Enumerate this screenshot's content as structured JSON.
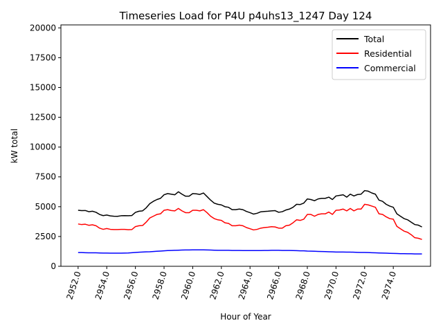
{
  "chart_data": {
    "type": "line",
    "title": "Timeseries Load for P4U p4uhs13_1247  Day 124",
    "xlabel": "Hour of Year",
    "ylabel": "kW total",
    "xlim": [
      2950.8,
      2976.6
    ],
    "ylim": [
      0,
      20250
    ],
    "xticks": [
      2952.0,
      2954.0,
      2956.0,
      2958.0,
      2960.0,
      2962.0,
      2964.0,
      2966.0,
      2968.0,
      2970.0,
      2972.0,
      2974.0
    ],
    "xtick_labels": [
      "2952.0",
      "2954.0",
      "2956.0",
      "2958.0",
      "2960.0",
      "2962.0",
      "2964.0",
      "2966.0",
      "2968.0",
      "2970.0",
      "2972.0",
      "2974.0"
    ],
    "yticks": [
      0,
      2500,
      5000,
      7500,
      10000,
      12500,
      15000,
      17500,
      20000
    ],
    "ytick_labels": [
      "0",
      "2500",
      "5000",
      "7500",
      "10000",
      "12500",
      "15000",
      "17500",
      "20000"
    ],
    "legend_position": "top-right",
    "x_start": 2952.0,
    "x_step": 0.25,
    "series": [
      {
        "name": "Total",
        "color": "#000000",
        "values": [
          4700,
          4670,
          4680,
          4580,
          4620,
          4530,
          4350,
          4250,
          4300,
          4230,
          4200,
          4190,
          4240,
          4250,
          4240,
          4260,
          4520,
          4620,
          4650,
          4900,
          5250,
          5450,
          5600,
          5700,
          6000,
          6100,
          6050,
          6000,
          6250,
          6050,
          5880,
          5880,
          6100,
          6080,
          6030,
          6150,
          5850,
          5550,
          5300,
          5200,
          5150,
          5000,
          4950,
          4750,
          4750,
          4800,
          4750,
          4600,
          4500,
          4380,
          4450,
          4570,
          4600,
          4620,
          4650,
          4670,
          4530,
          4580,
          4720,
          4800,
          4950,
          5200,
          5180,
          5300,
          5650,
          5600,
          5500,
          5650,
          5700,
          5700,
          5800,
          5600,
          5900,
          5950,
          6000,
          5800,
          6050,
          5900,
          6020,
          6050,
          6350,
          6300,
          6150,
          6050,
          5550,
          5450,
          5200,
          5050,
          4950,
          4400,
          4200,
          4000,
          3900,
          3700,
          3500,
          3450,
          3300
        ]
      },
      {
        "name": "Residential",
        "color": "#ff0000",
        "values": [
          3550,
          3500,
          3530,
          3440,
          3480,
          3400,
          3200,
          3100,
          3170,
          3100,
          3080,
          3080,
          3100,
          3100,
          3070,
          3080,
          3330,
          3400,
          3420,
          3700,
          4050,
          4200,
          4350,
          4400,
          4700,
          4750,
          4680,
          4650,
          4850,
          4650,
          4500,
          4500,
          4700,
          4700,
          4650,
          4750,
          4500,
          4200,
          4000,
          3900,
          3850,
          3650,
          3600,
          3400,
          3400,
          3450,
          3400,
          3250,
          3150,
          3050,
          3100,
          3200,
          3250,
          3280,
          3320,
          3300,
          3200,
          3200,
          3400,
          3450,
          3650,
          3900,
          3850,
          3950,
          4350,
          4350,
          4200,
          4350,
          4400,
          4400,
          4550,
          4350,
          4700,
          4720,
          4800,
          4650,
          4850,
          4650,
          4800,
          4800,
          5200,
          5150,
          5050,
          4950,
          4400,
          4350,
          4150,
          4000,
          3950,
          3350,
          3150,
          2950,
          2850,
          2650,
          2400,
          2350,
          2250
        ]
      },
      {
        "name": "Commercial",
        "color": "#0000ff",
        "values": [
          1150,
          1150,
          1140,
          1130,
          1130,
          1130,
          1120,
          1110,
          1110,
          1100,
          1100,
          1100,
          1100,
          1110,
          1120,
          1140,
          1160,
          1180,
          1200,
          1210,
          1220,
          1240,
          1260,
          1280,
          1300,
          1320,
          1330,
          1340,
          1350,
          1360,
          1370,
          1370,
          1380,
          1380,
          1380,
          1380,
          1370,
          1360,
          1350,
          1340,
          1340,
          1340,
          1340,
          1330,
          1330,
          1330,
          1320,
          1320,
          1320,
          1320,
          1320,
          1320,
          1330,
          1330,
          1340,
          1340,
          1340,
          1330,
          1330,
          1330,
          1320,
          1310,
          1300,
          1300,
          1280,
          1270,
          1260,
          1250,
          1240,
          1230,
          1220,
          1210,
          1200,
          1200,
          1200,
          1190,
          1190,
          1180,
          1170,
          1160,
          1160,
          1150,
          1140,
          1130,
          1120,
          1110,
          1100,
          1090,
          1080,
          1070,
          1060,
          1060,
          1050,
          1050,
          1040,
          1040,
          1040
        ]
      }
    ]
  }
}
